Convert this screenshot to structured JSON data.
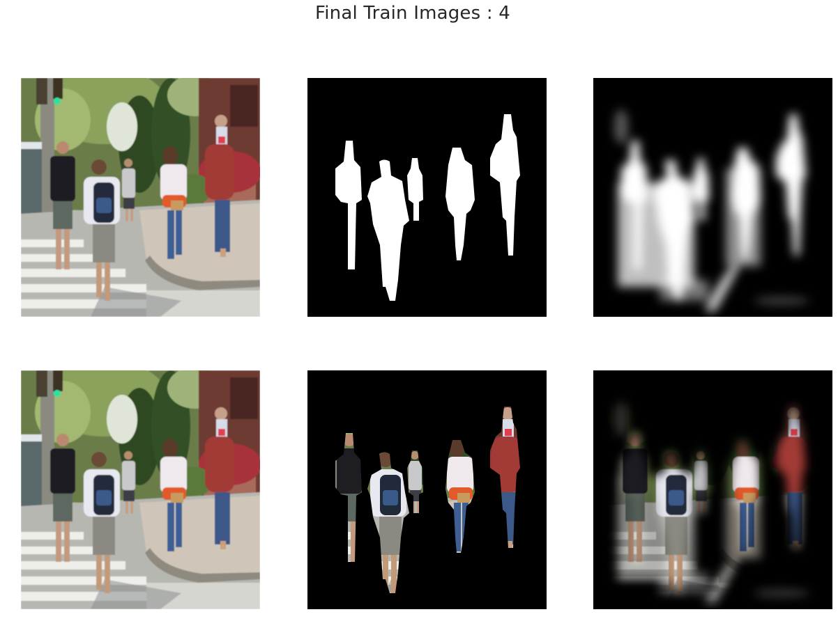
{
  "figure": {
    "title": "Final Train Images : 4"
  },
  "panels": [
    {
      "row": 0,
      "col": 0,
      "content": "input-photo"
    },
    {
      "row": 0,
      "col": 1,
      "content": "ground-truth-mask"
    },
    {
      "row": 0,
      "col": 2,
      "content": "predicted-mask"
    },
    {
      "row": 1,
      "col": 0,
      "content": "input-photo"
    },
    {
      "row": 1,
      "col": 1,
      "content": "ground-truth-masked-photo"
    },
    {
      "row": 1,
      "col": 2,
      "content": "predicted-masked-photo"
    }
  ],
  "colors": {
    "background": "#ffffff",
    "title_text": "#262626",
    "mask_fg": "#ffffff",
    "mask_bg": "#000000"
  }
}
